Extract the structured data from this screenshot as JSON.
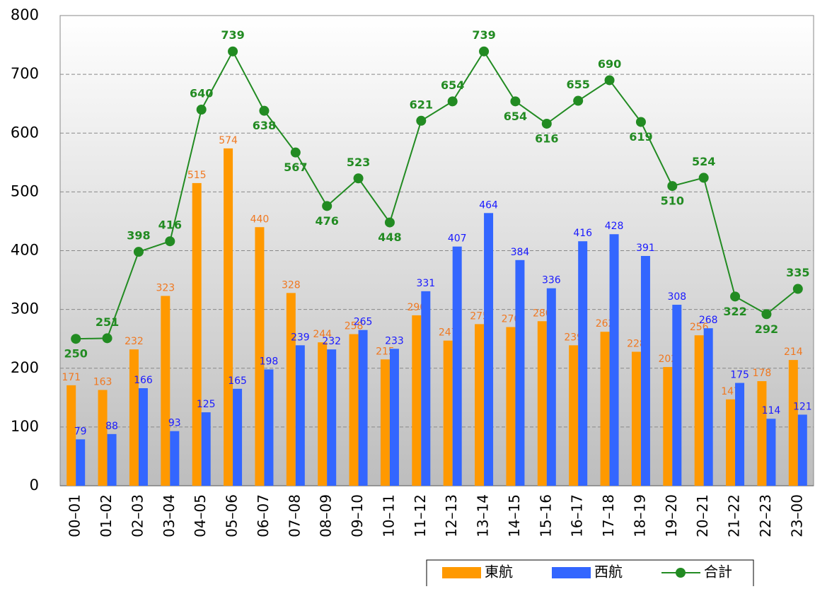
{
  "chart_data": {
    "type": "bar",
    "categories": [
      "00–01",
      "01–02",
      "02–03",
      "03–04",
      "04–05",
      "05–06",
      "06–07",
      "07–08",
      "08–09",
      "09–10",
      "10–11",
      "11–12",
      "12–13",
      "13–14",
      "14–15",
      "15–16",
      "16–17",
      "17–18",
      "18–19",
      "19–20",
      "20–21",
      "21–22",
      "22–23",
      "23–00"
    ],
    "series": [
      {
        "name": "東航",
        "type": "bar",
        "color": "#ff9900",
        "label_color": "#f07820",
        "values": [
          171,
          163,
          232,
          323,
          515,
          574,
          440,
          328,
          244,
          258,
          215,
          290,
          247,
          275,
          270,
          280,
          239,
          262,
          228,
          202,
          256,
          147,
          178,
          214
        ]
      },
      {
        "name": "西航",
        "type": "bar",
        "color": "#3366ff",
        "label_color": "#1a1aff",
        "values": [
          79,
          88,
          166,
          93,
          125,
          165,
          198,
          239,
          232,
          265,
          233,
          331,
          407,
          464,
          384,
          336,
          416,
          428,
          391,
          308,
          268,
          175,
          114,
          121
        ]
      },
      {
        "name": "合計",
        "type": "line",
        "color": "#228b22",
        "label_color": "#228b22",
        "values": [
          250,
          251,
          398,
          416,
          640,
          739,
          638,
          567,
          476,
          523,
          448,
          621,
          654,
          739,
          654,
          616,
          655,
          690,
          619,
          510,
          524,
          322,
          292,
          335
        ]
      }
    ],
    "ylim": [
      0,
      800
    ],
    "yticks": [
      0,
      100,
      200,
      300,
      400,
      500,
      600,
      700,
      800
    ],
    "grid": true,
    "legend": "bottom"
  }
}
